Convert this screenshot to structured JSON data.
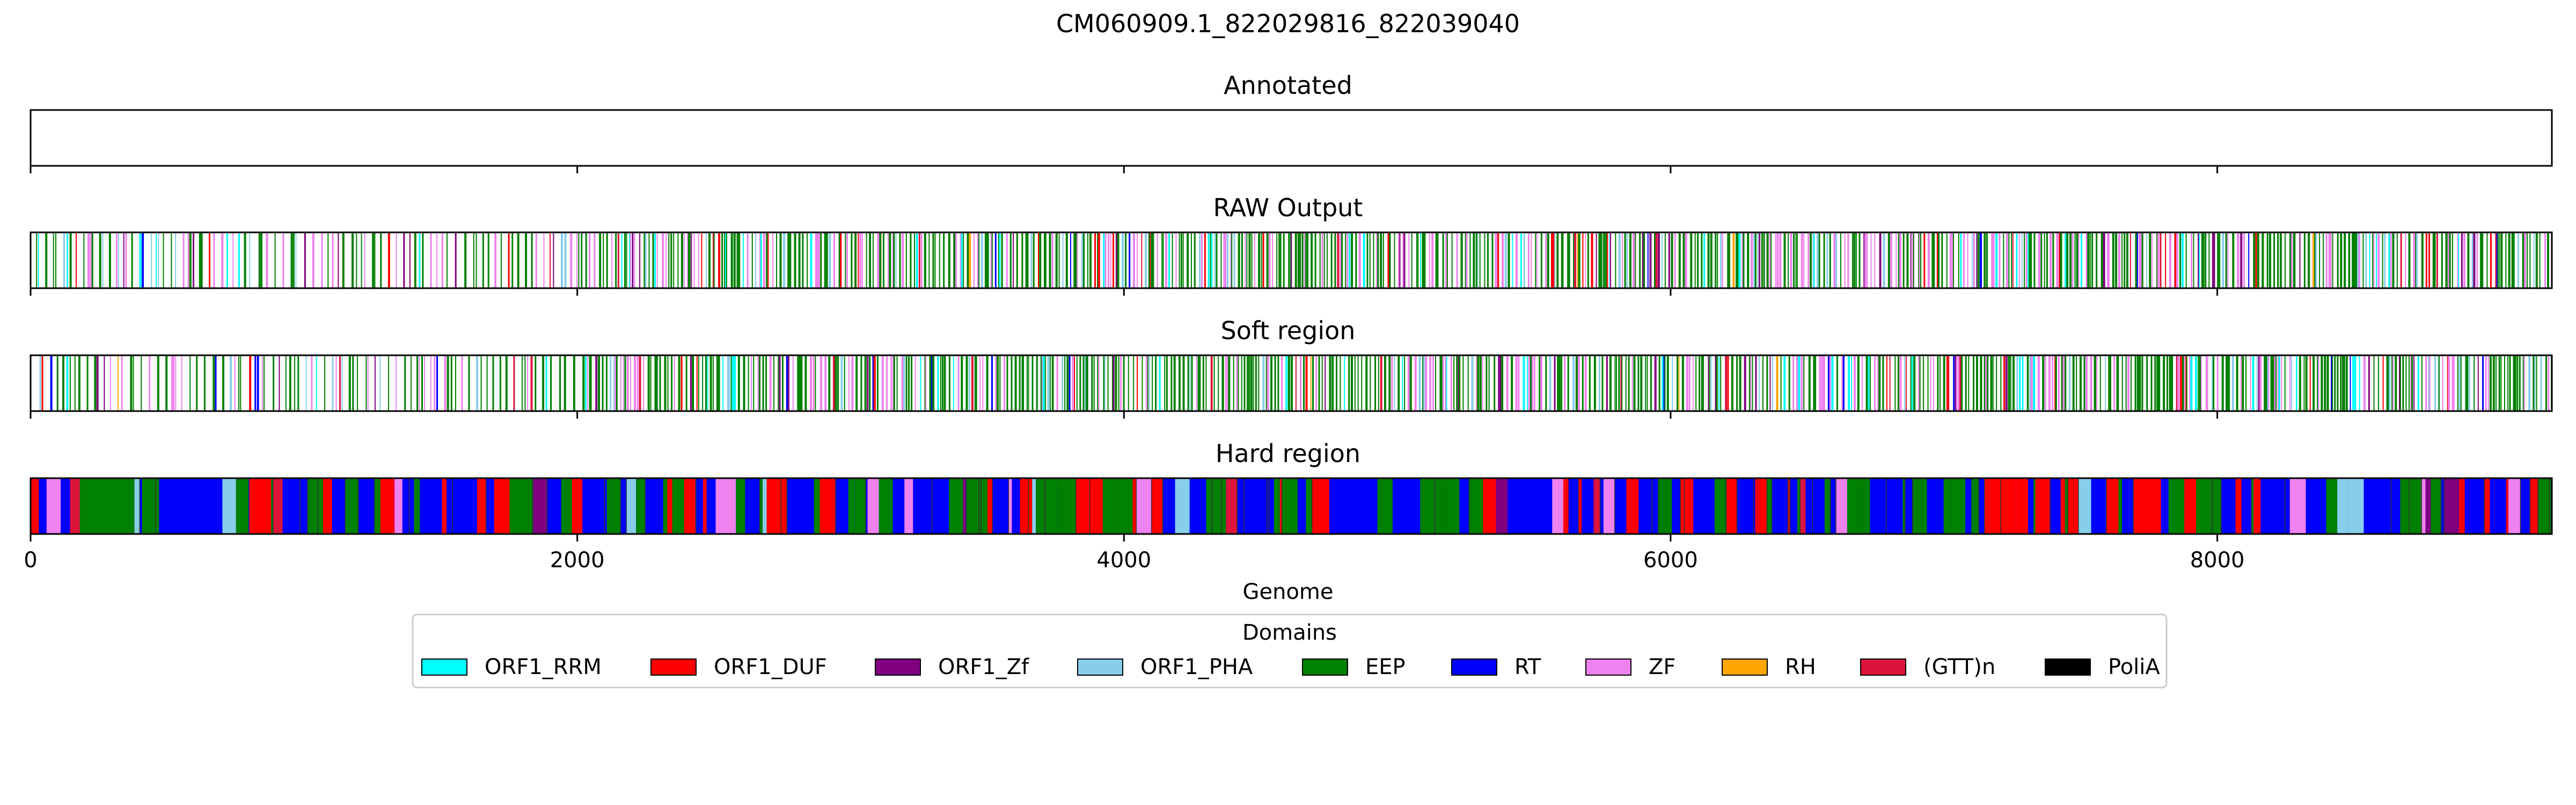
{
  "figure_title": "CM060909.1_822029816_822039040",
  "chart_data": {
    "type": "domain-track",
    "genome_length": 9224,
    "xlabel": "Genome",
    "xlim": [
      0,
      9224
    ],
    "xticks": [
      0,
      2000,
      4000,
      6000,
      8000
    ],
    "xtick_labels": [
      "0",
      "2000",
      "4000",
      "6000",
      "8000"
    ],
    "tracks": [
      {
        "title": "Annotated",
        "segments": []
      },
      {
        "title": "RAW Output",
        "density": "sparse"
      },
      {
        "title": "Soft region",
        "density": "sparse"
      },
      {
        "title": "Hard region",
        "density": "dense",
        "notable_segments": [
          {
            "start": 0,
            "end": 30,
            "domain": "ORF1_DUF"
          },
          {
            "start": 180,
            "end": 380,
            "domain": "EEP"
          },
          {
            "start": 470,
            "end": 700,
            "domain": "RT"
          },
          {
            "start": 800,
            "end": 880,
            "domain": "ORF1_DUF"
          }
        ]
      }
    ],
    "legend": {
      "title": "Domains",
      "placement": "bottom-center",
      "items": [
        {
          "label": "ORF1_RRM",
          "color": "#00ffff"
        },
        {
          "label": "ORF1_DUF",
          "color": "#ff0000"
        },
        {
          "label": "ORF1_Zf",
          "color": "#800080"
        },
        {
          "label": "ORF1_PHA",
          "color": "#87ceeb"
        },
        {
          "label": "EEP",
          "color": "#008000"
        },
        {
          "label": "RT",
          "color": "#0000ff"
        },
        {
          "label": "ZF",
          "color": "#ee82ee"
        },
        {
          "label": "RH",
          "color": "#ffa500"
        },
        {
          "label": "(GTT)n",
          "color": "#dc143c"
        },
        {
          "label": "PoliA",
          "color": "#000000"
        }
      ]
    }
  }
}
